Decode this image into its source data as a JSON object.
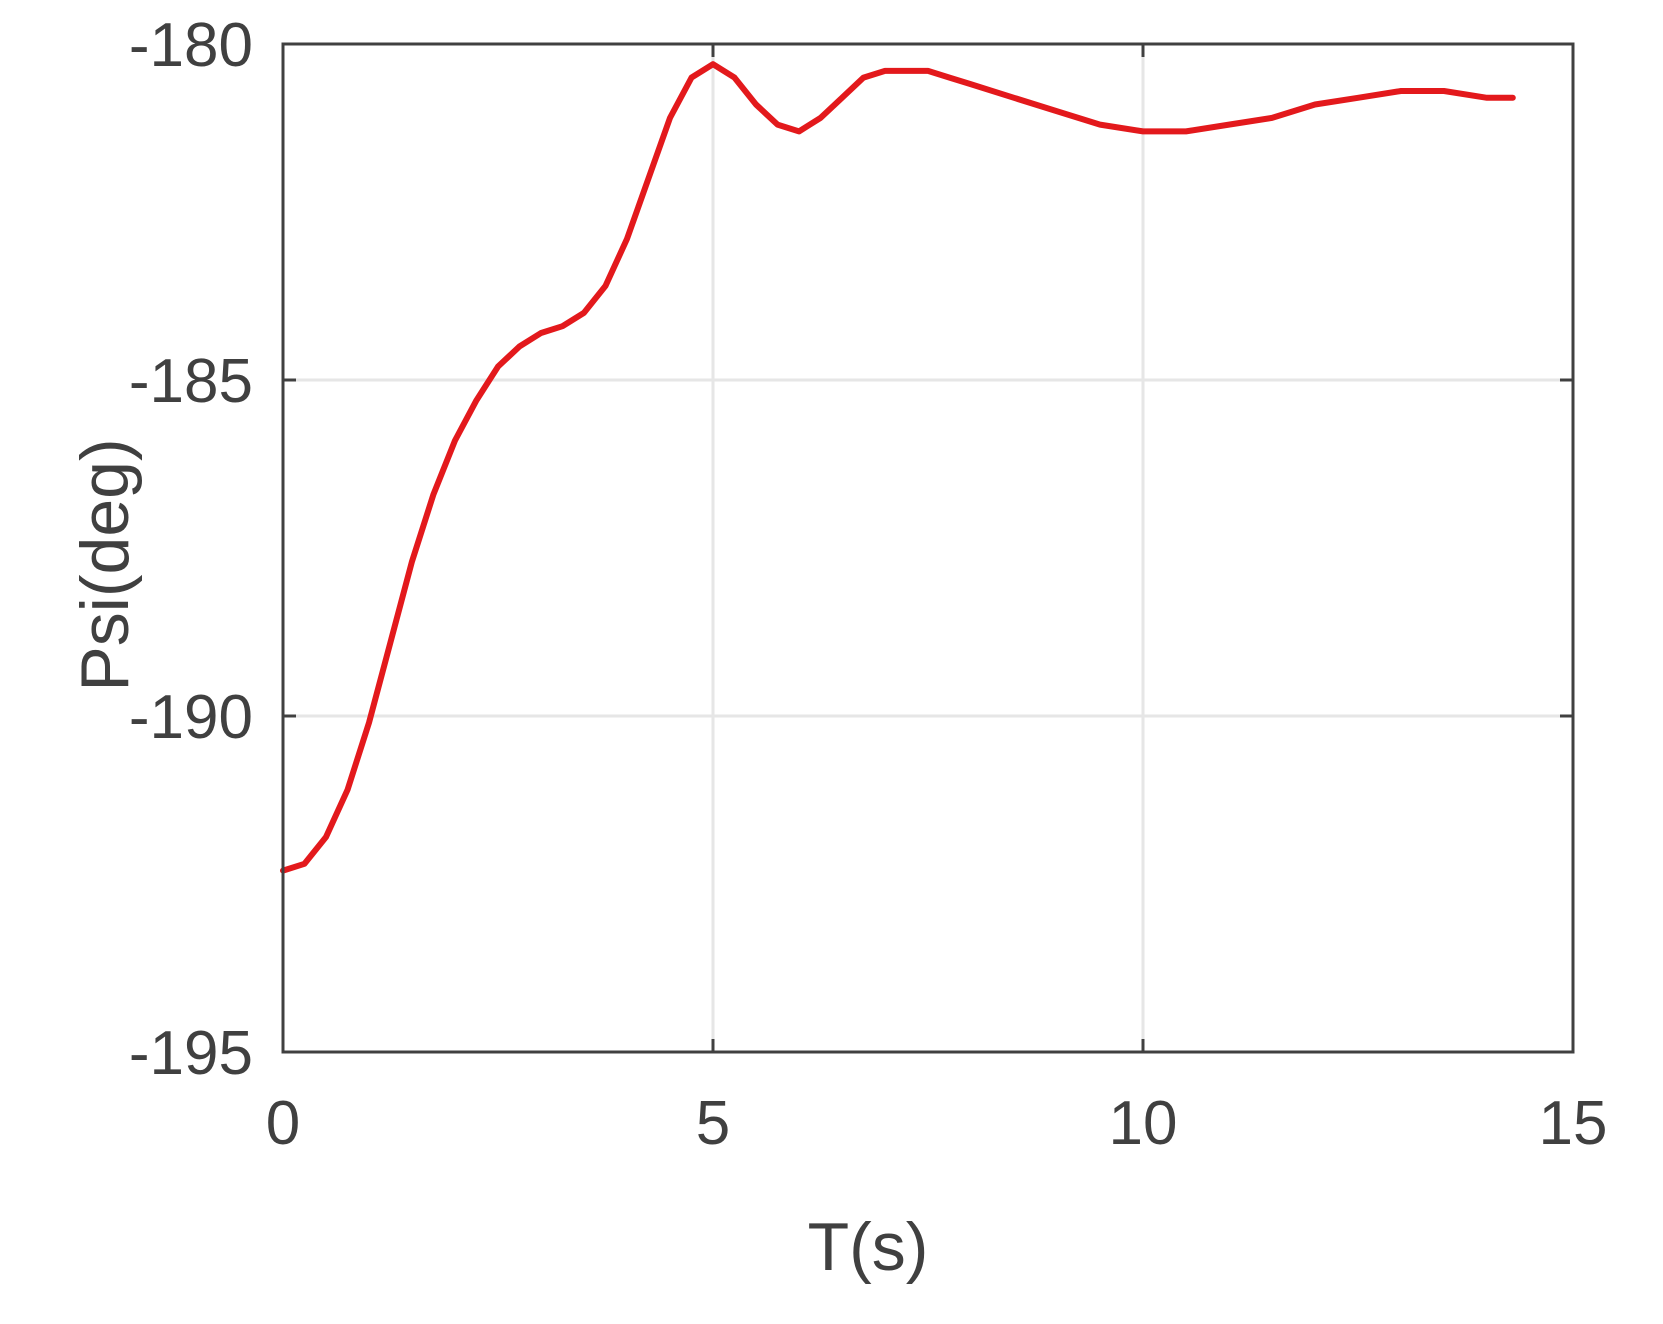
{
  "chart_data": {
    "type": "line",
    "title": "",
    "xlabel": "T(s)",
    "ylabel": "Psi(deg)",
    "xlim": [
      0,
      15
    ],
    "ylim": [
      -195,
      -180
    ],
    "xticks": [
      0,
      5,
      10,
      15
    ],
    "yticks": [
      -195,
      -190,
      -185,
      -180
    ],
    "xtick_labels": [
      "0",
      "5",
      "10",
      "15"
    ],
    "ytick_labels": [
      "-195",
      "-190",
      "-185",
      "-180"
    ],
    "grid": true,
    "line_color": "#e3191c",
    "axis_color": "#404040",
    "grid_color": "#e6e6e6",
    "series": [
      {
        "x": [
          0,
          0.25,
          0.5,
          0.75,
          1.0,
          1.25,
          1.5,
          1.75,
          2.0,
          2.25,
          2.5,
          2.75,
          3.0,
          3.25,
          3.5,
          3.75,
          4.0,
          4.25,
          4.5,
          4.75,
          5.0,
          5.25,
          5.5,
          5.75,
          6.0,
          6.25,
          6.5,
          6.75,
          7.0,
          7.25,
          7.5,
          7.75,
          8.0,
          8.5,
          9.0,
          9.5,
          10.0,
          10.5,
          11.0,
          11.5,
          12.0,
          12.5,
          13.0,
          13.5,
          14.0,
          14.3
        ],
        "y": [
          -192.3,
          -192.2,
          -191.8,
          -191.1,
          -190.1,
          -188.9,
          -187.7,
          -186.7,
          -185.9,
          -185.3,
          -184.8,
          -184.5,
          -184.3,
          -184.2,
          -184.0,
          -183.6,
          -182.9,
          -182.0,
          -181.1,
          -180.5,
          -180.3,
          -180.5,
          -180.9,
          -181.2,
          -181.3,
          -181.1,
          -180.8,
          -180.5,
          -180.4,
          -180.4,
          -180.4,
          -180.5,
          -180.6,
          -180.8,
          -181.0,
          -181.2,
          -181.3,
          -181.3,
          -181.2,
          -181.1,
          -180.9,
          -180.8,
          -180.7,
          -180.7,
          -180.8,
          -180.8
        ]
      }
    ]
  }
}
